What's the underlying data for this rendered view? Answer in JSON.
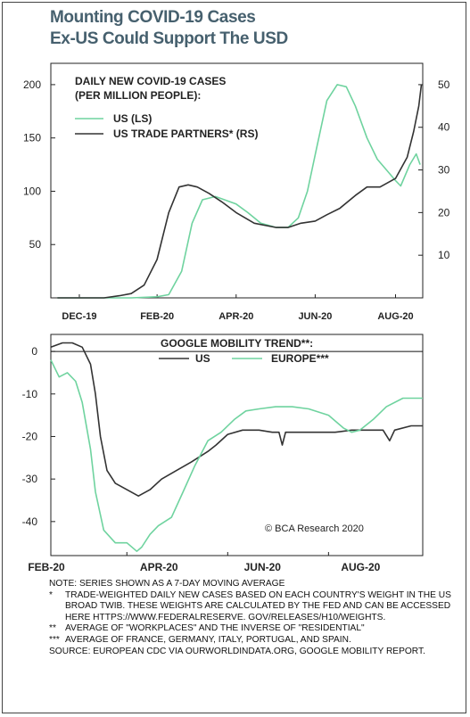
{
  "title": {
    "line1": "Mounting COVID-19 Cases",
    "line2": "Ex-US Could Support The USD"
  },
  "colors": {
    "title": "#46606e",
    "us_cases": "#6fd39f",
    "trade_partners": "#333333",
    "us_mobility": "#333333",
    "europe_mobility": "#6fd39f"
  },
  "chart_data": [
    {
      "type": "line",
      "title": "DAILY NEW COVID-19  CASES",
      "subtitle": "(PER MILLION PEOPLE):",
      "x_tick_labels": [
        "DEC-19",
        "FEB-20",
        "APR-20",
        "JUN-20",
        "AUG-20"
      ],
      "left_axis": {
        "ticks": [
          "50",
          "100",
          "150",
          "200"
        ],
        "ylim": [
          0,
          220
        ]
      },
      "right_axis": {
        "ticks": [
          "10",
          "20",
          "30",
          "40",
          "50"
        ],
        "ylim": [
          0,
          55
        ]
      },
      "grid": false,
      "legend_position": "top-left",
      "series": [
        {
          "name": "US (LS)",
          "axis": "left",
          "points": [
            [
              "2019-12-15",
              0
            ],
            [
              "2020-01-20",
              0
            ],
            [
              "2020-02-10",
              0
            ],
            [
              "2020-03-01",
              1
            ],
            [
              "2020-03-10",
              3
            ],
            [
              "2020-03-20",
              25
            ],
            [
              "2020-03-28",
              70
            ],
            [
              "2020-04-05",
              92
            ],
            [
              "2020-04-15",
              95
            ],
            [
              "2020-04-22",
              92
            ],
            [
              "2020-05-01",
              88
            ],
            [
              "2020-05-10",
              80
            ],
            [
              "2020-05-20",
              70
            ],
            [
              "2020-06-01",
              66
            ],
            [
              "2020-06-10",
              66
            ],
            [
              "2020-06-18",
              75
            ],
            [
              "2020-06-25",
              100
            ],
            [
              "2020-07-02",
              140
            ],
            [
              "2020-07-10",
              185
            ],
            [
              "2020-07-18",
              200
            ],
            [
              "2020-07-25",
              198
            ],
            [
              "2020-08-01",
              180
            ],
            [
              "2020-08-10",
              150
            ],
            [
              "2020-08-18",
              130
            ],
            [
              "2020-08-25",
              120
            ],
            [
              "2020-09-01",
              110
            ],
            [
              "2020-09-05",
              105
            ],
            [
              "2020-09-12",
              125
            ],
            [
              "2020-09-17",
              135
            ],
            [
              "2020-09-20",
              125
            ]
          ]
        },
        {
          "name": "US TRADE PARTNERS* (RS)",
          "axis": "right",
          "points": [
            [
              "2019-12-15",
              0
            ],
            [
              "2020-01-20",
              0
            ],
            [
              "2020-02-01",
              0.5
            ],
            [
              "2020-02-10",
              1
            ],
            [
              "2020-02-20",
              3
            ],
            [
              "2020-03-01",
              9
            ],
            [
              "2020-03-10",
              20
            ],
            [
              "2020-03-18",
              26
            ],
            [
              "2020-03-25",
              26.5
            ],
            [
              "2020-04-01",
              26
            ],
            [
              "2020-04-10",
              24.5
            ],
            [
              "2020-04-20",
              22.5
            ],
            [
              "2020-05-01",
              20
            ],
            [
              "2020-05-15",
              17.5
            ],
            [
              "2020-06-01",
              16.5
            ],
            [
              "2020-06-10",
              16.5
            ],
            [
              "2020-06-20",
              17.5
            ],
            [
              "2020-07-01",
              18
            ],
            [
              "2020-07-10",
              19.5
            ],
            [
              "2020-07-20",
              21
            ],
            [
              "2020-08-01",
              24
            ],
            [
              "2020-08-10",
              26
            ],
            [
              "2020-08-20",
              26
            ],
            [
              "2020-09-01",
              28
            ],
            [
              "2020-09-10",
              33
            ],
            [
              "2020-09-15",
              39
            ],
            [
              "2020-09-19",
              45
            ],
            [
              "2020-09-21",
              50
            ]
          ]
        }
      ]
    },
    {
      "type": "line",
      "title": "GOOGLE MOBILITY TREND**:",
      "x_tick_labels": [
        "FEB-20",
        "APR-20",
        "JUN-20",
        "AUG-20"
      ],
      "y_axis": {
        "ticks": [
          "0",
          "-10",
          "-20",
          "-30",
          "-40"
        ],
        "ylim": [
          -48,
          4
        ]
      },
      "zero_line": true,
      "grid": false,
      "legend_position": "top-center",
      "annotation": "© BCA Research 2020",
      "series": [
        {
          "name": "US",
          "points": [
            [
              "2020-02-15",
              1
            ],
            [
              "2020-02-22",
              2
            ],
            [
              "2020-02-28",
              2
            ],
            [
              "2020-03-05",
              1
            ],
            [
              "2020-03-10",
              -3
            ],
            [
              "2020-03-13",
              -10
            ],
            [
              "2020-03-16",
              -20
            ],
            [
              "2020-03-20",
              -28
            ],
            [
              "2020-03-25",
              -31
            ],
            [
              "2020-04-01",
              -32.5
            ],
            [
              "2020-04-08",
              -34
            ],
            [
              "2020-04-15",
              -32.5
            ],
            [
              "2020-04-22",
              -30
            ],
            [
              "2020-05-01",
              -28
            ],
            [
              "2020-05-10",
              -26
            ],
            [
              "2020-05-20",
              -23.5
            ],
            [
              "2020-05-25",
              -22
            ],
            [
              "2020-06-01",
              -19.5
            ],
            [
              "2020-06-10",
              -18.5
            ],
            [
              "2020-06-20",
              -18.5
            ],
            [
              "2020-06-28",
              -19
            ],
            [
              "2020-07-02",
              -19
            ],
            [
              "2020-07-04",
              -22
            ],
            [
              "2020-07-06",
              -19
            ],
            [
              "2020-07-15",
              -19
            ],
            [
              "2020-07-25",
              -19
            ],
            [
              "2020-08-05",
              -19
            ],
            [
              "2020-08-15",
              -18.5
            ],
            [
              "2020-08-28",
              -18.5
            ],
            [
              "2020-09-03",
              -18.5
            ],
            [
              "2020-09-07",
              -21
            ],
            [
              "2020-09-10",
              -18.5
            ],
            [
              "2020-09-20",
              -17.5
            ],
            [
              "2020-09-27",
              -17.5
            ]
          ]
        },
        {
          "name": "EUROPE***",
          "points": [
            [
              "2020-02-15",
              -2
            ],
            [
              "2020-02-20",
              -6
            ],
            [
              "2020-02-25",
              -5
            ],
            [
              "2020-03-01",
              -7
            ],
            [
              "2020-03-05",
              -12
            ],
            [
              "2020-03-10",
              -23
            ],
            [
              "2020-03-13",
              -33
            ],
            [
              "2020-03-18",
              -42
            ],
            [
              "2020-03-25",
              -45
            ],
            [
              "2020-04-01",
              -45
            ],
            [
              "2020-04-07",
              -47
            ],
            [
              "2020-04-10",
              -46
            ],
            [
              "2020-04-15",
              -43
            ],
            [
              "2020-04-20",
              -41
            ],
            [
              "2020-04-28",
              -39
            ],
            [
              "2020-05-05",
              -33
            ],
            [
              "2020-05-12",
              -27
            ],
            [
              "2020-05-20",
              -21
            ],
            [
              "2020-05-28",
              -19
            ],
            [
              "2020-06-05",
              -16
            ],
            [
              "2020-06-12",
              -14
            ],
            [
              "2020-06-20",
              -13.5
            ],
            [
              "2020-06-30",
              -13
            ],
            [
              "2020-07-10",
              -13
            ],
            [
              "2020-07-20",
              -13.5
            ],
            [
              "2020-08-01",
              -15
            ],
            [
              "2020-08-10",
              -18
            ],
            [
              "2020-08-15",
              -19
            ],
            [
              "2020-08-20",
              -18.5
            ],
            [
              "2020-08-28",
              -16
            ],
            [
              "2020-09-05",
              -13
            ],
            [
              "2020-09-15",
              -11
            ],
            [
              "2020-09-27",
              -11
            ]
          ]
        }
      ]
    }
  ],
  "notes": [
    {
      "mark": "",
      "text": "NOTE: SERIES SHOWN AS A 7-DAY MOVING AVERAGE"
    },
    {
      "mark": "*",
      "text": "TRADE-WEIGHTED DAILY NEW CASES BASED ON EACH COUNTRY'S WEIGHT IN THE US BROAD TWIB.  THESE WEIGHTS ARE CALCULATED BY THE FED AND CAN BE ACCESSED HERE HTTPS://WWW.FEDERALRESERVE. GOV/RELEASES/H10/WEIGHTS."
    },
    {
      "mark": "**",
      "text": "AVERAGE OF \"WORKPLACES\" AND THE INVERSE OF \"RESIDENTIAL\""
    },
    {
      "mark": "***",
      "text": "AVERAGE OF FRANCE, GERMANY, ITALY, PORTUGAL, AND SPAIN."
    },
    {
      "mark": "",
      "text": "SOURCE: EUROPEAN CDC VIA OURWORLDINDATA.ORG, GOOGLE MOBILITY REPORT."
    }
  ]
}
